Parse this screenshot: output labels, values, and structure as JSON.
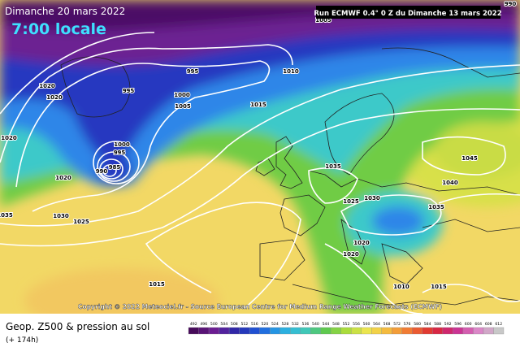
{
  "header": {
    "date": "Dimanche 20 mars 2022",
    "time": "7:00 locale",
    "run": "Run ECMWF 0.4° 0 Z du Dimanche 13 mars 2022"
  },
  "copyright": "Copyright © 2022 Meteociel.fr - Source European Centre for Medium Range Weather Forecasts (ECMWF)",
  "footer": {
    "title": "Geop. Z500 & pression au sol",
    "lead": "(+ 174h)"
  },
  "isobar_labels": [
    "990",
    "1005",
    "1020",
    "1020",
    "995",
    "995",
    "1010",
    "1000",
    "1005",
    "1015",
    "1020",
    "1000",
    "995",
    "990",
    "985",
    "1020",
    "1035",
    "1045",
    "1040",
    "1035",
    "1030",
    "1025",
    "1025",
    "1030",
    "1035",
    "1020",
    "1020",
    "1010",
    "1015",
    "1015"
  ],
  "legend": {
    "labels": [
      492,
      496,
      500,
      504,
      508,
      512,
      516,
      520,
      524,
      528,
      532,
      536,
      540,
      544,
      548,
      552,
      556,
      560,
      564,
      568,
      572,
      576,
      580,
      584,
      588,
      592,
      596,
      600,
      604,
      608,
      612
    ]
  }
}
